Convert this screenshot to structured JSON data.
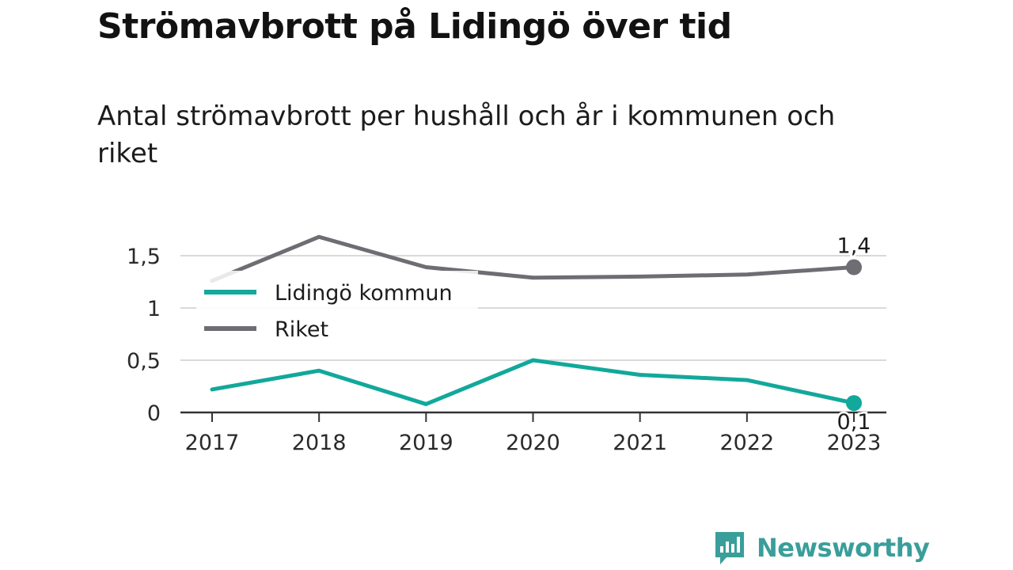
{
  "header": {
    "title": "Strömavbrott på Lidingö över tid",
    "subtitle": "Antal strömavbrott per hushåll och år i kommunen och riket"
  },
  "brand": {
    "name": "Newsworthy",
    "icon": "newsworthy-logo-icon",
    "color": "#3a9e9a"
  },
  "chart_data": {
    "type": "line",
    "x": [
      "2017",
      "2018",
      "2019",
      "2020",
      "2021",
      "2022",
      "2023"
    ],
    "y_ticks": [
      "0",
      "0,5",
      "1",
      "1,5"
    ],
    "y_tick_values": [
      0,
      0.5,
      1,
      1.5
    ],
    "ylim": [
      0,
      1.5
    ],
    "grid": true,
    "legend_position": "top-left",
    "series": [
      {
        "name": "Lidingö kommun",
        "color": "#12a89b",
        "values": [
          0.22,
          0.4,
          0.08,
          0.5,
          0.36,
          0.31,
          0.09
        ],
        "end_label": "0,1"
      },
      {
        "name": "Riket",
        "color": "#6e6d73",
        "values": [
          1.26,
          1.68,
          1.39,
          1.29,
          1.3,
          1.32,
          1.39
        ],
        "end_label": "1,4"
      }
    ]
  }
}
